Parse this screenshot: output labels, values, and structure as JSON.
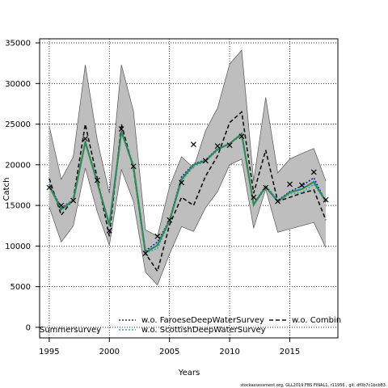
{
  "chart_data": {
    "type": "line",
    "title": "",
    "xlabel": "Years",
    "ylabel": "Catch",
    "xlim": [
      1994.2,
      2019
    ],
    "ylim": [
      -1300,
      35500
    ],
    "x_ticks": [
      1995,
      2000,
      2005,
      2010,
      2015
    ],
    "y_ticks": [
      0,
      5000,
      10000,
      15000,
      20000,
      25000,
      30000,
      35000
    ],
    "grid": true,
    "grid_style": "dotted",
    "legend_position": "bottom",
    "years": [
      1995,
      1996,
      1997,
      1998,
      1999,
      2000,
      2001,
      2002,
      2003,
      2004,
      2005,
      2006,
      2007,
      2008,
      2009,
      2010,
      2011,
      2012,
      2013,
      2014,
      2015,
      2016,
      2017,
      2018
    ],
    "confidence_band": {
      "upper": [
        24800,
        18200,
        21000,
        32300,
        23000,
        16500,
        32300,
        26600,
        12000,
        11200,
        17300,
        21000,
        19600,
        24200,
        27000,
        32400,
        34100,
        18000,
        28300,
        19000,
        20700,
        21400,
        22000,
        18000
      ],
      "lower": [
        14800,
        10500,
        12500,
        19600,
        14200,
        10100,
        19400,
        15500,
        6800,
        5200,
        9000,
        12400,
        11800,
        14700,
        16700,
        20000,
        20700,
        12200,
        17000,
        11700,
        12100,
        12500,
        12900,
        9800
      ]
    },
    "series": [
      {
        "name": "w.o. FaroeseDeepWaterSurvey",
        "color": "#1f1fb4",
        "dash": "2,2",
        "values": [
          17600,
          14700,
          15700,
          22900,
          17900,
          12700,
          24200,
          19900,
          9400,
          10500,
          13200,
          18500,
          20100,
          20600,
          22000,
          22600,
          23700,
          15200,
          17400,
          15600,
          16700,
          17400,
          18400,
          15400
        ]
      },
      {
        "name": "w.o. ScottishDeepWaterSurvey",
        "color": "#2fa89a",
        "dash": "2,2",
        "values": [
          17500,
          14600,
          15700,
          22700,
          17800,
          12500,
          24000,
          19700,
          9100,
          9700,
          13000,
          18000,
          19800,
          20400,
          21800,
          22600,
          23900,
          15000,
          17200,
          15500,
          16400,
          16600,
          17600,
          15500
        ]
      },
      {
        "name": "w.o. Combined",
        "color": "#111111",
        "dash": "5,3",
        "values": [
          18300,
          13800,
          15800,
          25000,
          18300,
          11200,
          25000,
          19500,
          9100,
          6900,
          12600,
          16000,
          15000,
          18600,
          21100,
          25200,
          26500,
          16500,
          21800,
          15500,
          16000,
          16500,
          16900,
          13200
        ]
      },
      {
        "name": "",
        "color": "#2e8b57",
        "dash": "none",
        "values": [
          17400,
          14500,
          15600,
          22800,
          17800,
          12600,
          24100,
          19800,
          9200,
          10100,
          13100,
          18200,
          20000,
          20500,
          21900,
          22600,
          23800,
          15100,
          17300,
          15500,
          16600,
          17000,
          17900,
          15500
        ]
      }
    ],
    "observations": {
      "marker": "x",
      "points": [
        {
          "x": 1995,
          "y": 17200
        },
        {
          "x": 1996,
          "y": 15000
        },
        {
          "x": 1997,
          "y": 15600
        },
        {
          "x": 1998,
          "y": 23200
        },
        {
          "x": 1999,
          "y": 18100
        },
        {
          "x": 2000,
          "y": 11900
        },
        {
          "x": 2001,
          "y": 24400
        },
        {
          "x": 2002,
          "y": 19800
        },
        {
          "x": 2003,
          "y": 9100
        },
        {
          "x": 2004,
          "y": 11200
        },
        {
          "x": 2005,
          "y": 13200
        },
        {
          "x": 2006,
          "y": 17800
        },
        {
          "x": 2007,
          "y": 22500
        },
        {
          "x": 2008,
          "y": 20500
        },
        {
          "x": 2009,
          "y": 22300
        },
        {
          "x": 2010,
          "y": 22400
        },
        {
          "x": 2011,
          "y": 23500
        },
        {
          "x": 2012,
          "y": 16000
        },
        {
          "x": 2013,
          "y": 17200
        },
        {
          "x": 2014,
          "y": 15500
        },
        {
          "x": 2015,
          "y": 17600
        },
        {
          "x": 2016,
          "y": 17500
        },
        {
          "x": 2017,
          "y": 19100
        },
        {
          "x": 2018,
          "y": 15700
        }
      ]
    },
    "legend": {
      "entry_1": "w.o. FaroeseDeepWaterSurvey",
      "entry_2": "w.o. ScottishDeepWaterSurvey",
      "entry_3": "w.o. Combin",
      "entry_4": "Summersurvey"
    },
    "colors": {
      "band_fill": "#bebebe",
      "band_edge": "#555555",
      "grid": "#000000",
      "axis": "#000000"
    }
  },
  "footer": "stockassessment.org, GLL2019 FBS FINAL1, r11956 , git: df0b7c1bcb83"
}
